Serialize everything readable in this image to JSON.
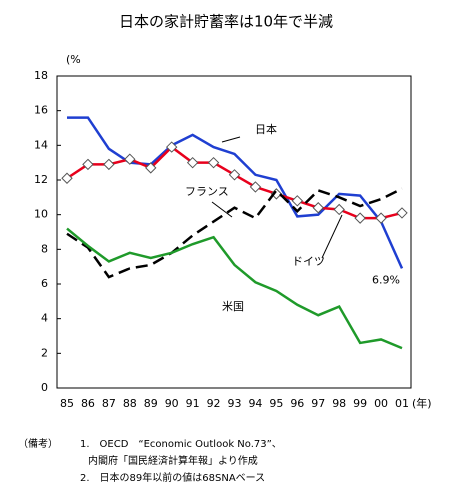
{
  "chart_data": {
    "type": "line",
    "title": "日本の家計貯蓄率は10年で半減",
    "y_unit": "(%",
    "x_unit": "(年)",
    "categories": [
      "85",
      "86",
      "87",
      "88",
      "89",
      "90",
      "91",
      "92",
      "93",
      "94",
      "95",
      "96",
      "97",
      "98",
      "99",
      "00",
      "01"
    ],
    "series": [
      {
        "name": "日本",
        "color": "#1f3fd1",
        "dash": false,
        "marker": "none",
        "values": [
          15.6,
          15.6,
          13.8,
          13.0,
          12.9,
          14.0,
          14.6,
          13.9,
          13.5,
          12.3,
          12.0,
          9.9,
          10.0,
          11.2,
          11.1,
          9.6,
          6.9
        ],
        "value_labels": [
          null,
          null,
          null,
          null,
          null,
          null,
          null,
          null,
          null,
          null,
          null,
          null,
          null,
          null,
          null,
          null,
          "6.9%"
        ]
      },
      {
        "name": "ドイツ",
        "color": "#e8001c",
        "dash": false,
        "marker": "diamond",
        "values": [
          12.1,
          12.9,
          12.9,
          13.2,
          12.7,
          13.9,
          13.0,
          13.0,
          12.3,
          11.6,
          11.2,
          10.8,
          10.4,
          10.3,
          9.8,
          9.8,
          10.1
        ]
      },
      {
        "name": "フランス",
        "color": "#000000",
        "dash": true,
        "marker": "none",
        "values": [
          8.9,
          8.1,
          6.4,
          6.9,
          7.1,
          7.8,
          8.8,
          9.6,
          10.4,
          9.8,
          11.4,
          10.2,
          11.4,
          11.0,
          10.5,
          10.9,
          11.5
        ]
      },
      {
        "name": "米国",
        "color": "#1f9a2a",
        "dash": false,
        "marker": "none",
        "values": [
          9.2,
          8.2,
          7.3,
          7.8,
          7.5,
          7.8,
          8.3,
          8.7,
          7.1,
          6.1,
          5.6,
          4.8,
          4.2,
          4.7,
          2.6,
          2.8,
          2.3
        ]
      }
    ],
    "ylim": [
      0,
      18
    ],
    "yticks": [
      0,
      2,
      4,
      6,
      8,
      10,
      12,
      14,
      16,
      18
    ],
    "grid": false,
    "notes": [
      "（備考）",
      "1.　OECD　“Economic Outlook No.73”、",
      "内閣府「国民経済計算年報」より作成",
      "2.　日本の89年以前の値は68SNAベース"
    ]
  }
}
